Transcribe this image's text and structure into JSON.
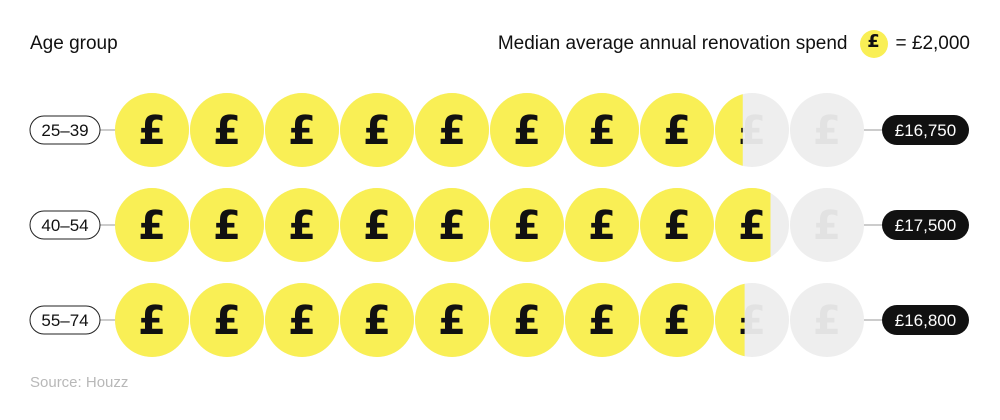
{
  "header": {
    "left_label": "Age group",
    "right_label": "Median average annual renovation spend",
    "legend_symbol": "£",
    "legend_equals": "= £2,000"
  },
  "source": "Source: Houzz",
  "chart_data": {
    "type": "pictograph",
    "unit_value": 2000,
    "icon": "pound-coin-icon",
    "icon_symbol": "£",
    "max_icons": 10,
    "categories": [
      "25–39",
      "40–54",
      "55–74"
    ],
    "values": [
      16750,
      17500,
      16800
    ],
    "value_labels": [
      "£16,750",
      "£17,500",
      "£16,800"
    ],
    "colors": {
      "filled": "#f9ef55",
      "empty": "#eeeeee",
      "label_bg": "#111111",
      "label_text": "#ffffff"
    }
  }
}
